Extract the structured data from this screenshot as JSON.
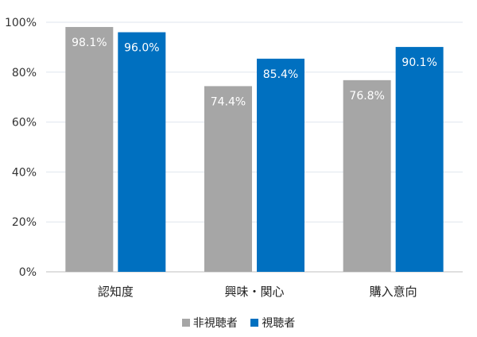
{
  "chart_data": {
    "type": "bar",
    "categories": [
      "認知度",
      "興味・関心",
      "購入意向"
    ],
    "series": [
      {
        "name": "非視聴者",
        "values": [
          98.1,
          74.4,
          76.8
        ],
        "labels": [
          "98.1%",
          "74.4%",
          "76.8%"
        ],
        "color": "#A6A6A6",
        "label_color": "#ffffff"
      },
      {
        "name": "視聴者",
        "values": [
          96.0,
          85.4,
          90.1
        ],
        "labels": [
          "96.0%",
          "85.4%",
          "90.1%"
        ],
        "color": "#0070C0",
        "label_color": "#ffffff"
      }
    ],
    "y_ticks": [
      0,
      20,
      40,
      60,
      80,
      100
    ],
    "y_tick_labels": [
      "0%",
      "20%",
      "40%",
      "60%",
      "80%",
      "100%"
    ],
    "ylim": [
      0,
      100
    ],
    "grid": true,
    "legend_position": "bottom"
  }
}
